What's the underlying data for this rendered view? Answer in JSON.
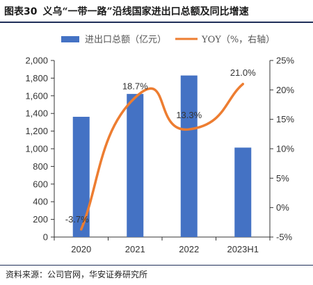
{
  "header": {
    "figure_number": "图表30",
    "title": "义乌“一带一路”沿线国家进出口总额及同比增速"
  },
  "source": "资料来源：公司官网，华安证券研究所",
  "colors": {
    "bar": "#4472c4",
    "line": "#ed7d31",
    "rule": "#1f2f59"
  },
  "chart_data": {
    "type": "bar",
    "categories": [
      "2020",
      "2021",
      "2022",
      "2023H1"
    ],
    "series": [
      {
        "name": "进出口总额（亿元）",
        "type": "bar",
        "axis": "left",
        "values": [
          1362,
          1621,
          1830,
          1013
        ]
      },
      {
        "name": "YOY（%，右轴）",
        "type": "line",
        "axis": "right",
        "smooth": true,
        "values": [
          -3.7,
          18.7,
          13.3,
          21.0
        ],
        "labels": [
          "-3.7%",
          "18.7%",
          "13.3%",
          "21.0%"
        ]
      }
    ],
    "y_left": {
      "min": 0,
      "max": 2000,
      "step": 200,
      "tick_labels": [
        "0",
        "200",
        "400",
        "600",
        "800",
        "1,000",
        "1,200",
        "1,400",
        "1,600",
        "1,800",
        "2,000"
      ]
    },
    "y_right": {
      "min": -5,
      "max": 25,
      "step": 5,
      "tick_labels": [
        "-5%",
        "0%",
        "5%",
        "10%",
        "15%",
        "20%",
        "25%"
      ]
    },
    "legend_position": "top",
    "grid": false
  }
}
